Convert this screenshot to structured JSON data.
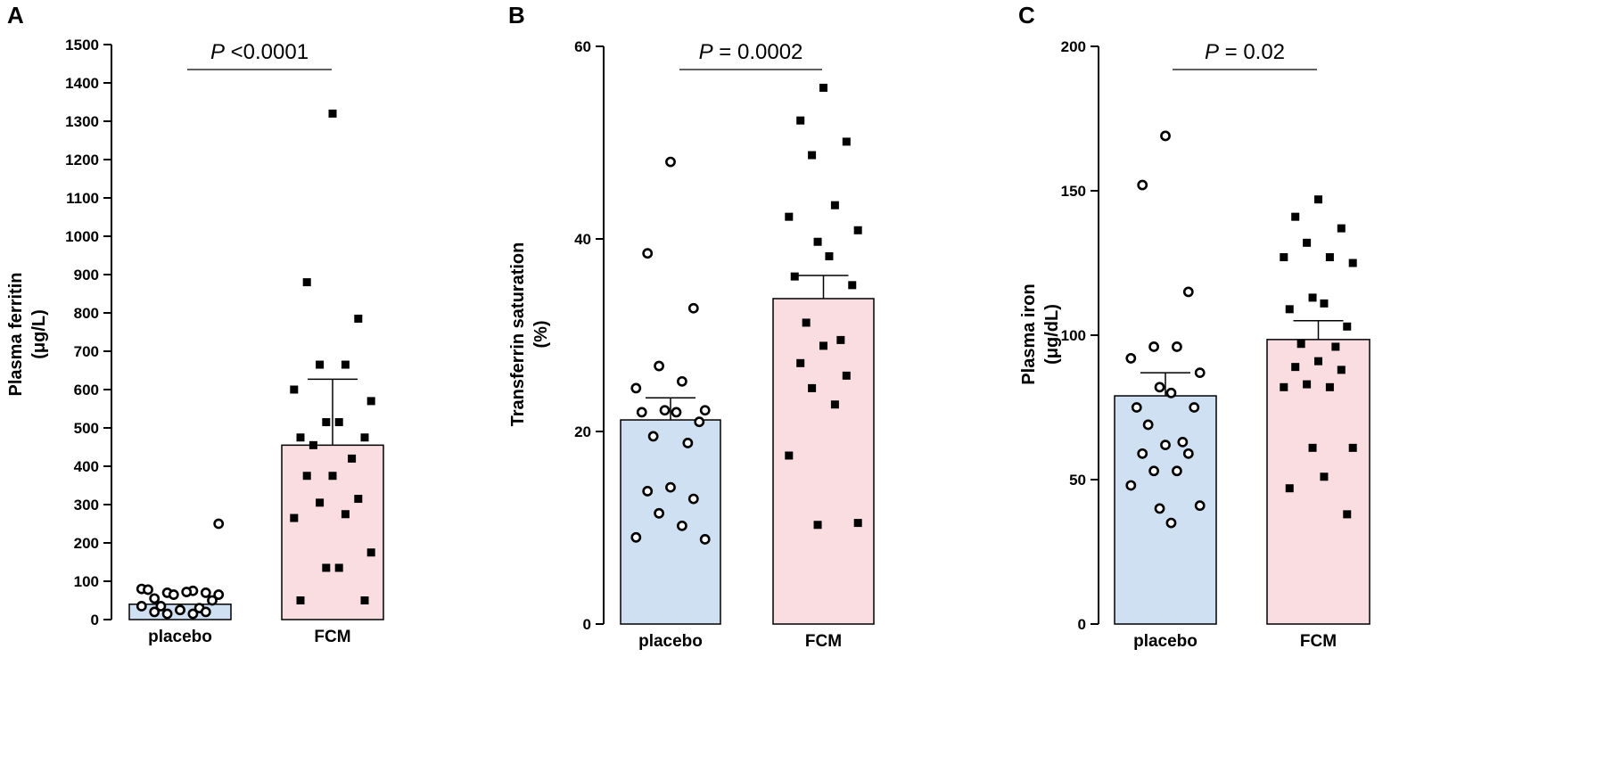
{
  "chart_data": [
    {
      "type": "bar",
      "panel": "A",
      "ylabel": "Plasma ferritin",
      "ylabel_unit": "(μg/L)",
      "ylim": [
        0,
        1500
      ],
      "yticks": [
        0,
        100,
        200,
        300,
        400,
        500,
        600,
        700,
        800,
        900,
        1000,
        1100,
        1200,
        1300,
        1400,
        1500
      ],
      "categories": [
        "placebo",
        "FCM"
      ],
      "colors": [
        "#cfe0f3",
        "#fadde1"
      ],
      "p_letter": "P",
      "p_text": " <0.0001",
      "series": [
        {
          "name": "placebo",
          "mean": 40,
          "sem_upper": 40,
          "points": [
            25,
            55,
            70,
            70,
            75,
            80,
            65,
            65,
            72,
            78,
            50,
            35,
            30,
            25,
            20,
            20,
            15,
            15,
            35,
            250
          ]
        },
        {
          "name": "FCM",
          "mean": 455,
          "sem_upper": 627,
          "points": [
            1320,
            880,
            785,
            665,
            665,
            600,
            570,
            515,
            515,
            475,
            475,
            455,
            420,
            375,
            375,
            315,
            305,
            275,
            265,
            175,
            135,
            135,
            50,
            50
          ]
        }
      ]
    },
    {
      "type": "bar",
      "panel": "B",
      "ylabel": "Transferrin saturation",
      "ylabel_unit": "(%)",
      "ylim": [
        0,
        60
      ],
      "yticks": [
        0,
        20,
        40,
        60
      ],
      "categories": [
        "placebo",
        "FCM"
      ],
      "colors": [
        "#cfe0f3",
        "#fadde1"
      ],
      "p_letter": "P",
      "p_text": " = 0.0002",
      "series": [
        {
          "name": "placebo",
          "mean": 21.2,
          "sem_upper": 23.5,
          "points": [
            48.0,
            38.5,
            32.8,
            26.8,
            25.2,
            24.5,
            22.2,
            22.2,
            22.0,
            22.0,
            21.0,
            19.5,
            18.8,
            14.2,
            13.8,
            13.0,
            11.5,
            10.2,
            9.0,
            8.8
          ]
        },
        {
          "name": "FCM",
          "mean": 33.8,
          "sem_upper": 36.2,
          "points": [
            55.7,
            52.3,
            50.1,
            48.7,
            43.5,
            42.3,
            40.9,
            39.7,
            38.2,
            36.1,
            35.2,
            31.3,
            29.5,
            28.9,
            27.1,
            25.8,
            24.5,
            22.8,
            17.5,
            10.5,
            10.3
          ]
        }
      ]
    },
    {
      "type": "bar",
      "panel": "C",
      "ylabel": "Plasma iron",
      "ylabel_unit": "(μg/dL)",
      "ylim": [
        0,
        200
      ],
      "yticks": [
        0,
        50,
        100,
        150,
        200
      ],
      "categories": [
        "placebo",
        "FCM"
      ],
      "colors": [
        "#cfe0f3",
        "#fadde1"
      ],
      "p_letter": "P",
      "p_text": " = 0.02",
      "series": [
        {
          "name": "placebo",
          "mean": 79,
          "sem_upper": 87,
          "points": [
            169,
            152,
            115,
            96,
            96,
            92,
            87,
            82,
            80,
            75,
            75,
            69,
            63,
            62,
            59,
            59,
            53,
            53,
            48,
            41,
            40,
            35
          ]
        },
        {
          "name": "FCM",
          "mean": 98.5,
          "sem_upper": 105,
          "points": [
            147,
            141,
            137,
            132,
            127,
            127,
            125,
            113,
            111,
            109,
            103,
            97,
            96,
            91,
            89,
            88,
            83,
            82,
            82,
            61,
            61,
            51,
            47,
            38
          ]
        }
      ]
    }
  ]
}
